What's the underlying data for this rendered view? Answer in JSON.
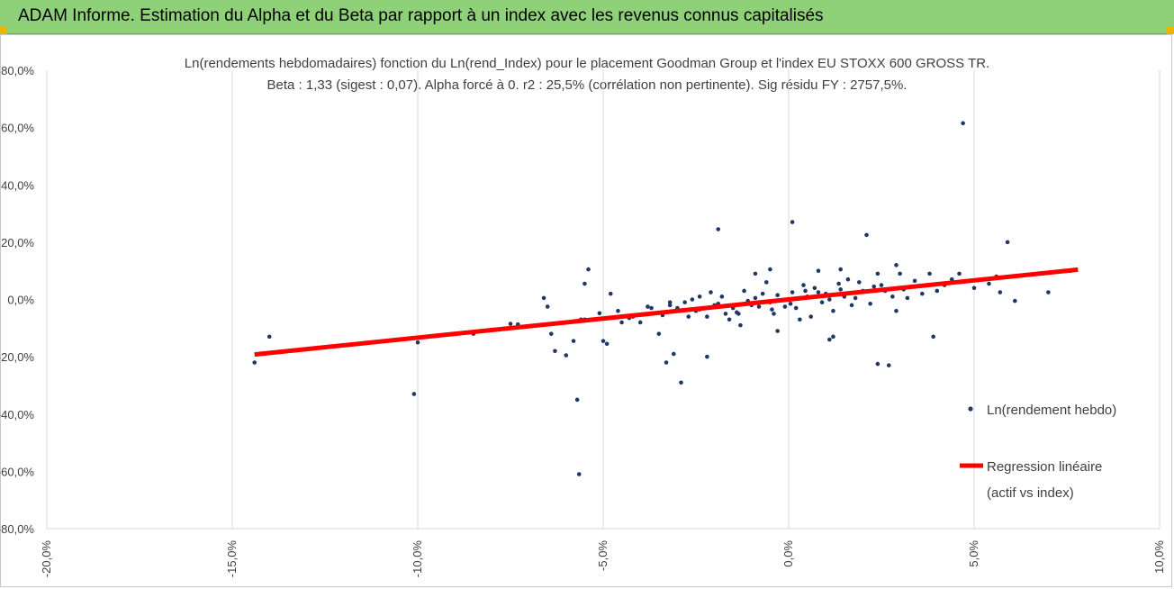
{
  "header": {
    "title": "ADAM Informe. Estimation du Alpha et du Beta par rapport à un index avec les revenus connus capitalisés",
    "accent": "#8fd179"
  },
  "chart_data": {
    "type": "scatter",
    "title": "Ln(rendements hebdomadaires) fonction du Ln(rend_Index) pour le placement Goodman Group et l'index EU STOXX 600 GROSS TR.",
    "subtitle": "Beta : 1,33 (sigest : 0,07). Alpha forcé à 0. r2 : 25,5% (corrélation non pertinente). Sig résidu FY : 2757,5%.",
    "xlabel": "",
    "ylabel": "",
    "xlim": [
      -20,
      10
    ],
    "ylim": [
      -80,
      80
    ],
    "x_ticks": [
      "-20,0%",
      "-15,0%",
      "-10,0%",
      "-5,0%",
      "0,0%",
      "5,0%",
      "10,0%"
    ],
    "y_ticks": [
      "80,0%",
      "60,0%",
      "40,0%",
      "20,0%",
      "0,0%",
      "-20,0%",
      "-40,0%",
      "-60,0%",
      "-80,0%"
    ],
    "grid": "vertical",
    "legend_position": "right",
    "series": [
      {
        "name": "Ln(rendement hebdo)",
        "color": "#203864",
        "points": [
          [
            -14.4,
            -22
          ],
          [
            -14.0,
            -13
          ],
          [
            -10.1,
            -33
          ],
          [
            -10.0,
            -15
          ],
          [
            -8.5,
            -12
          ],
          [
            -7.5,
            -8.5
          ],
          [
            -7.3,
            -8.7
          ],
          [
            -6.6,
            0.5
          ],
          [
            -6.5,
            -2.5
          ],
          [
            -6.3,
            -18
          ],
          [
            -6.4,
            -12
          ],
          [
            -6.0,
            -19.5
          ],
          [
            -5.8,
            -14.5
          ],
          [
            -5.7,
            -35
          ],
          [
            -5.65,
            -61
          ],
          [
            -5.6,
            -7
          ],
          [
            -5.5,
            -7
          ],
          [
            -5.5,
            5.5
          ],
          [
            -5.4,
            10.5
          ],
          [
            -5.1,
            -4.8
          ],
          [
            -5.0,
            -14.5
          ],
          [
            -4.9,
            -15.5
          ],
          [
            -4.8,
            2
          ],
          [
            -4.6,
            -4
          ],
          [
            -4.3,
            -6.5
          ],
          [
            -4.0,
            -8
          ],
          [
            -3.7,
            -3
          ],
          [
            -3.5,
            -12
          ],
          [
            -3.3,
            -22
          ],
          [
            -3.2,
            -2
          ],
          [
            -3.1,
            -19
          ],
          [
            -2.9,
            -29
          ],
          [
            -2.7,
            -6
          ],
          [
            -2.4,
            1
          ],
          [
            -2.2,
            -20
          ],
          [
            -1.9,
            24.5
          ],
          [
            -1.7,
            -5
          ],
          [
            -1.3,
            -9
          ],
          [
            -0.9,
            9
          ],
          [
            -0.5,
            10.5
          ],
          [
            -0.3,
            -11
          ],
          [
            0.1,
            27
          ],
          [
            0.3,
            -7
          ],
          [
            0.8,
            10
          ],
          [
            1.1,
            -14
          ],
          [
            1.2,
            -13
          ],
          [
            1.4,
            10.5
          ],
          [
            2.1,
            22.5
          ],
          [
            2.4,
            9
          ],
          [
            2.4,
            -22.5
          ],
          [
            2.7,
            -23
          ],
          [
            2.9,
            12
          ],
          [
            3.0,
            9
          ],
          [
            3.1,
            3.5
          ],
          [
            3.8,
            9
          ],
          [
            3.9,
            -13
          ],
          [
            4.0,
            3
          ],
          [
            4.6,
            9
          ],
          [
            4.7,
            61.5
          ],
          [
            5.0,
            4
          ],
          [
            5.4,
            5.5
          ],
          [
            5.6,
            8
          ],
          [
            5.7,
            2.5
          ],
          [
            5.9,
            20
          ],
          [
            6.1,
            -0.5
          ],
          [
            7.0,
            2.5
          ],
          [
            7.6,
            10
          ],
          [
            0.0,
            0.0
          ],
          [
            0.5,
            1.0
          ],
          [
            -0.5,
            -1.0
          ],
          [
            1.0,
            2.0
          ],
          [
            -1.0,
            -2.0
          ],
          [
            1.5,
            1.0
          ],
          [
            -1.5,
            -3.0
          ],
          [
            2.0,
            3.0
          ],
          [
            -2.0,
            -2.0
          ],
          [
            0.2,
            -3.0
          ],
          [
            0.7,
            4.0
          ],
          [
            -0.7,
            2.0
          ],
          [
            1.7,
            -2.0
          ],
          [
            -1.2,
            3.0
          ],
          [
            2.5,
            5.0
          ],
          [
            -2.5,
            -4.0
          ],
          [
            0.4,
            5.0
          ],
          [
            -0.4,
            -5.0
          ],
          [
            1.2,
            -4.0
          ],
          [
            -1.8,
            1.0
          ],
          [
            3.0,
            4.0
          ],
          [
            -3.0,
            -3.0
          ],
          [
            0.9,
            -1.0
          ],
          [
            -0.9,
            0.5
          ],
          [
            1.9,
            6.0
          ],
          [
            -2.2,
            -6.0
          ],
          [
            2.8,
            1.0
          ],
          [
            -2.8,
            -1.0
          ],
          [
            0.1,
            2.5
          ],
          [
            -0.1,
            -2.5
          ],
          [
            1.4,
            3.5
          ],
          [
            -1.4,
            -4.5
          ],
          [
            2.2,
            -1.5
          ],
          [
            -2.6,
            0.0
          ],
          [
            3.4,
            6.5
          ],
          [
            3.6,
            2.0
          ],
          [
            -3.4,
            -5.5
          ],
          [
            -3.8,
            -2.5
          ],
          [
            0.6,
            -6.0
          ],
          [
            -0.6,
            6.0
          ],
          [
            1.6,
            7.0
          ],
          [
            -1.6,
            -7.0
          ],
          [
            2.6,
            3.0
          ],
          [
            -2.4,
            -3.5
          ],
          [
            0.3,
            0.5
          ],
          [
            -0.3,
            1.5
          ],
          [
            1.1,
            0.0
          ],
          [
            -1.1,
            -0.5
          ],
          [
            0.8,
            2.5
          ],
          [
            -0.8,
            -2.5
          ],
          [
            1.8,
            0.5
          ],
          [
            -1.9,
            -1.5
          ],
          [
            2.3,
            4.5
          ],
          [
            -2.1,
            2.5
          ],
          [
            3.2,
            0.5
          ],
          [
            -3.2,
            -1.0
          ],
          [
            0.05,
            -1.5
          ],
          [
            0.45,
            3.0
          ],
          [
            -0.45,
            -3.5
          ],
          [
            1.35,
            5.5
          ],
          [
            -1.35,
            -5.0
          ],
          [
            4.2,
            5.0
          ],
          [
            4.4,
            7.0
          ],
          [
            -4.2,
            -6.0
          ],
          [
            -4.5,
            -8.0
          ],
          [
            2.9,
            -4.0
          ]
        ]
      },
      {
        "name": "Regression linéaire (actif vs index)",
        "legend_lines": [
          "Regression linéaire",
          "(actif vs index)"
        ],
        "color": "#ff0000",
        "type": "line",
        "x": [
          -14.4,
          7.8
        ],
        "y": [
          -19.2,
          10.4
        ]
      }
    ]
  }
}
